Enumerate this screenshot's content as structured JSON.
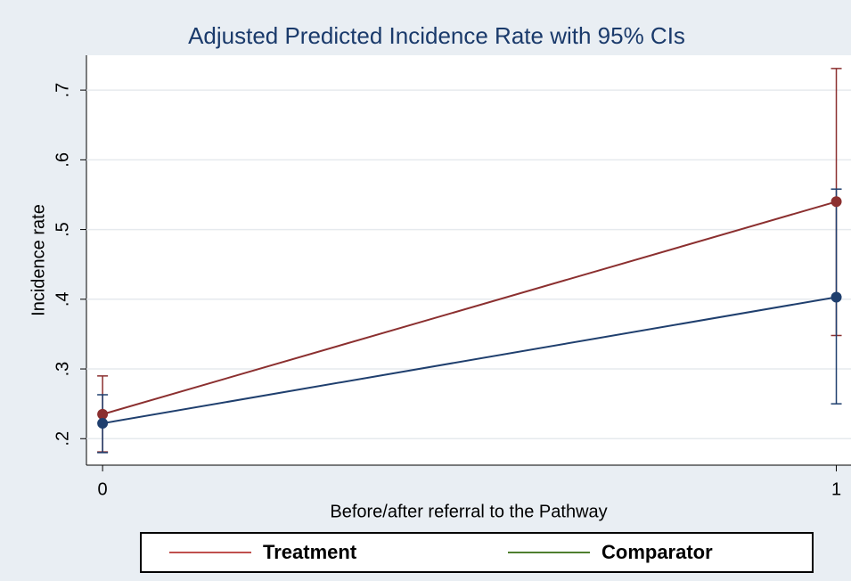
{
  "chart_data": {
    "type": "line",
    "title": "Adjusted Predicted Incidence Rate with 95% CIs",
    "x_label": "Before/after referral to the Pathway",
    "y_label": "Incidence rate",
    "x": [
      0,
      1
    ],
    "series": [
      {
        "name": "Treatment",
        "color": "#8b2f2f",
        "legend_color": "#c0504d",
        "values": [
          0.235,
          0.54
        ],
        "ci_low": [
          0.181,
          0.348
        ],
        "ci_high": [
          0.29,
          0.731
        ]
      },
      {
        "name": "Comparator",
        "color": "#1f3f6e",
        "legend_color": "#4f7f2f",
        "values": [
          0.222,
          0.403
        ],
        "ci_low": [
          0.18,
          0.25
        ],
        "ci_high": [
          0.263,
          0.558
        ]
      }
    ],
    "xlim": [
      -0.022,
      1.02
    ],
    "xticks": [
      0,
      1
    ],
    "ylim": [
      0.162,
      0.75
    ],
    "yticks": [
      {
        "value": 0.2,
        "label": ".2"
      },
      {
        "value": 0.3,
        "label": ".3"
      },
      {
        "value": 0.4,
        "label": ".4"
      },
      {
        "value": 0.5,
        "label": ".5"
      },
      {
        "value": 0.6,
        "label": ".6"
      },
      {
        "value": 0.7,
        "label": ".7"
      }
    ],
    "grid": true,
    "legend": "bottom"
  }
}
